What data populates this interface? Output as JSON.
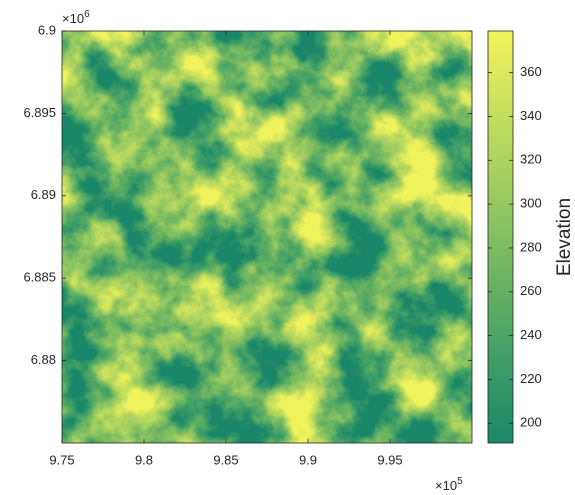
{
  "chart_data": {
    "type": "image",
    "xlim": [
      975000,
      1000000
    ],
    "xticks": [
      {
        "value": 975000,
        "label": "9.75"
      },
      {
        "value": 980000,
        "label": "9.8"
      },
      {
        "value": 985000,
        "label": "9.85"
      },
      {
        "value": 990000,
        "label": "9.9"
      },
      {
        "value": 995000,
        "label": "9.95"
      }
    ],
    "x_multiplier": {
      "base": "×10",
      "exponent": "5"
    },
    "ylim": [
      6875000,
      6900000
    ],
    "yticks": [
      {
        "value": 6880000,
        "label": "6.88"
      },
      {
        "value": 6885000,
        "label": "6.885"
      },
      {
        "value": 6890000,
        "label": "6.89"
      },
      {
        "value": 6895000,
        "label": "6.895"
      },
      {
        "value": 6900000,
        "label": "6.9"
      }
    ],
    "y_multiplier": {
      "base": "×10",
      "exponent": "6"
    },
    "colorbar": {
      "label": "Elevation",
      "clim": [
        191,
        379
      ],
      "ticks": [
        200,
        220,
        240,
        260,
        280,
        300,
        320,
        340,
        360
      ]
    },
    "colormap": [
      "#1a8768",
      "#3f9e66",
      "#6cb462",
      "#9acb60",
      "#c6df5e",
      "#f2f35c"
    ]
  }
}
